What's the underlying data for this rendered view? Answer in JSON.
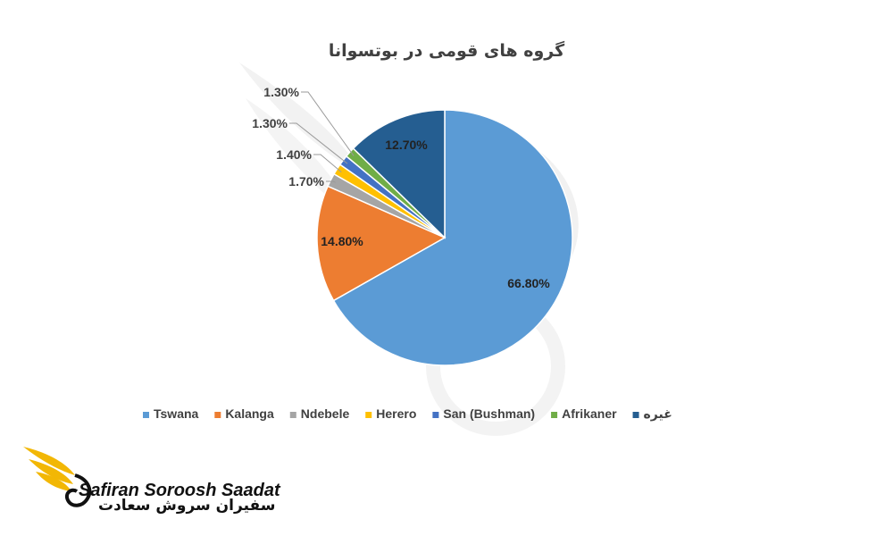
{
  "colors": {
    "Tswana": "#5b9bd5",
    "Kalanga": "#ed7d31",
    "Ndebele": "#a5a5a5",
    "Herero": "#ffc000",
    "San (Bushman)": "#4472c4",
    "Afrikaner": "#70ad47",
    "غیره": "#255e91",
    "logo_gold": "#f2b705"
  },
  "chart_data": {
    "type": "pie",
    "title": "گروه های قومی در بوتسوانا",
    "categories": [
      "Tswana",
      "Kalanga",
      "Ndebele",
      "Herero",
      "San (Bushman)",
      "Afrikaner",
      "غیره"
    ],
    "values": [
      66.8,
      14.8,
      1.7,
      1.4,
      1.3,
      1.3,
      12.7
    ],
    "data_labels": [
      "66.80%",
      "14.80%",
      "1.70%",
      "1.40%",
      "1.30%",
      "1.30%",
      "12.70%"
    ],
    "legend_position": "bottom"
  },
  "watermark": {
    "brand_en": "Safiran Soroosh Saadat",
    "brand_fa": "سفیران سروش سعادت"
  }
}
